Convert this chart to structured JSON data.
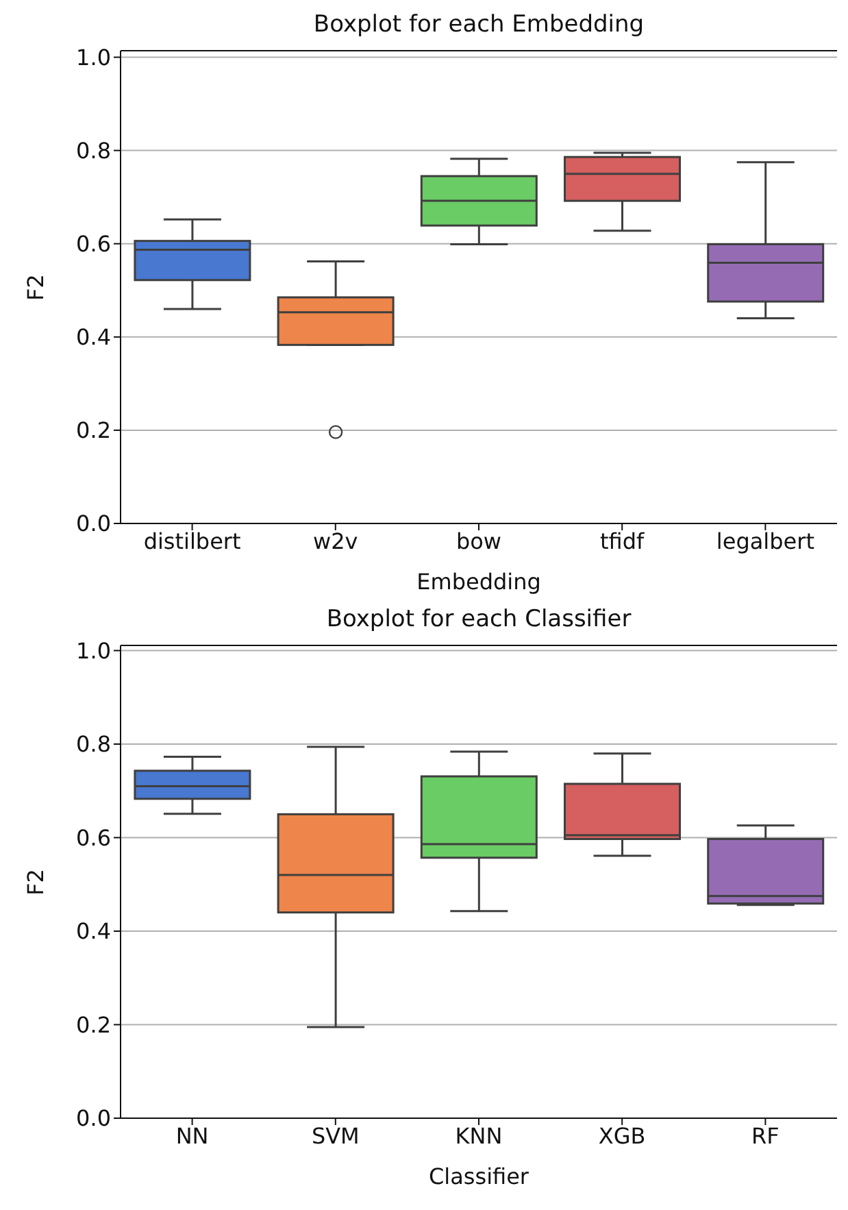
{
  "chart_data": [
    {
      "type": "box",
      "title": "Boxplot for each Embedding",
      "xlabel": "Embedding",
      "ylabel": "F2",
      "categories": [
        "distilbert",
        "w2v",
        "bow",
        "tfidf",
        "legalbert"
      ],
      "colors": [
        "#4878d0",
        "#ee854a",
        "#6acc64",
        "#d65f5f",
        "#956cb4"
      ],
      "boxes": [
        {
          "low": 0.46,
          "q1": 0.522,
          "median": 0.587,
          "q3": 0.606,
          "high": 0.652
        },
        {
          "low": 0.383,
          "q1": 0.383,
          "median": 0.453,
          "q3": 0.485,
          "high": 0.562,
          "outliers": [
            0.196
          ]
        },
        {
          "low": 0.599,
          "q1": 0.639,
          "median": 0.692,
          "q3": 0.745,
          "high": 0.782
        },
        {
          "low": 0.628,
          "q1": 0.692,
          "median": 0.75,
          "q3": 0.786,
          "high": 0.795
        },
        {
          "low": 0.44,
          "q1": 0.476,
          "median": 0.559,
          "q3": 0.599,
          "high": 0.775
        }
      ],
      "ylim": [
        0,
        1.014
      ],
      "yticks": [
        {
          "value": 0,
          "label": "0.0"
        },
        {
          "value": 0.2,
          "label": "0.2"
        },
        {
          "value": 0.4,
          "label": "0.4"
        },
        {
          "value": 0.6,
          "label": "0.6"
        },
        {
          "value": 0.8,
          "label": "0.8"
        },
        {
          "value": 1,
          "label": "1.0"
        }
      ],
      "grid": "y",
      "legend": false
    },
    {
      "type": "box",
      "title": "Boxplot for each Classifier",
      "xlabel": "Classifier",
      "ylabel": "F2",
      "categories": [
        "NN",
        "SVM",
        "KNN",
        "XGB",
        "RF"
      ],
      "colors": [
        "#4878d0",
        "#ee854a",
        "#6acc64",
        "#d65f5f",
        "#956cb4"
      ],
      "boxes": [
        {
          "low": 0.651,
          "q1": 0.683,
          "median": 0.71,
          "q3": 0.743,
          "high": 0.773
        },
        {
          "low": 0.195,
          "q1": 0.44,
          "median": 0.52,
          "q3": 0.65,
          "high": 0.794
        },
        {
          "low": 0.443,
          "q1": 0.557,
          "median": 0.586,
          "q3": 0.731,
          "high": 0.784
        },
        {
          "low": 0.561,
          "q1": 0.597,
          "median": 0.605,
          "q3": 0.715,
          "high": 0.78
        },
        {
          "low": 0.456,
          "q1": 0.459,
          "median": 0.475,
          "q3": 0.597,
          "high": 0.626
        }
      ],
      "ylim": [
        0,
        1.011
      ],
      "yticks": [
        {
          "value": 0,
          "label": "0.0"
        },
        {
          "value": 0.2,
          "label": "0.2"
        },
        {
          "value": 0.4,
          "label": "0.4"
        },
        {
          "value": 0.6,
          "label": "0.6"
        },
        {
          "value": 0.8,
          "label": "0.8"
        },
        {
          "value": 1,
          "label": "1.0"
        }
      ],
      "grid": "y",
      "legend": false
    }
  ]
}
